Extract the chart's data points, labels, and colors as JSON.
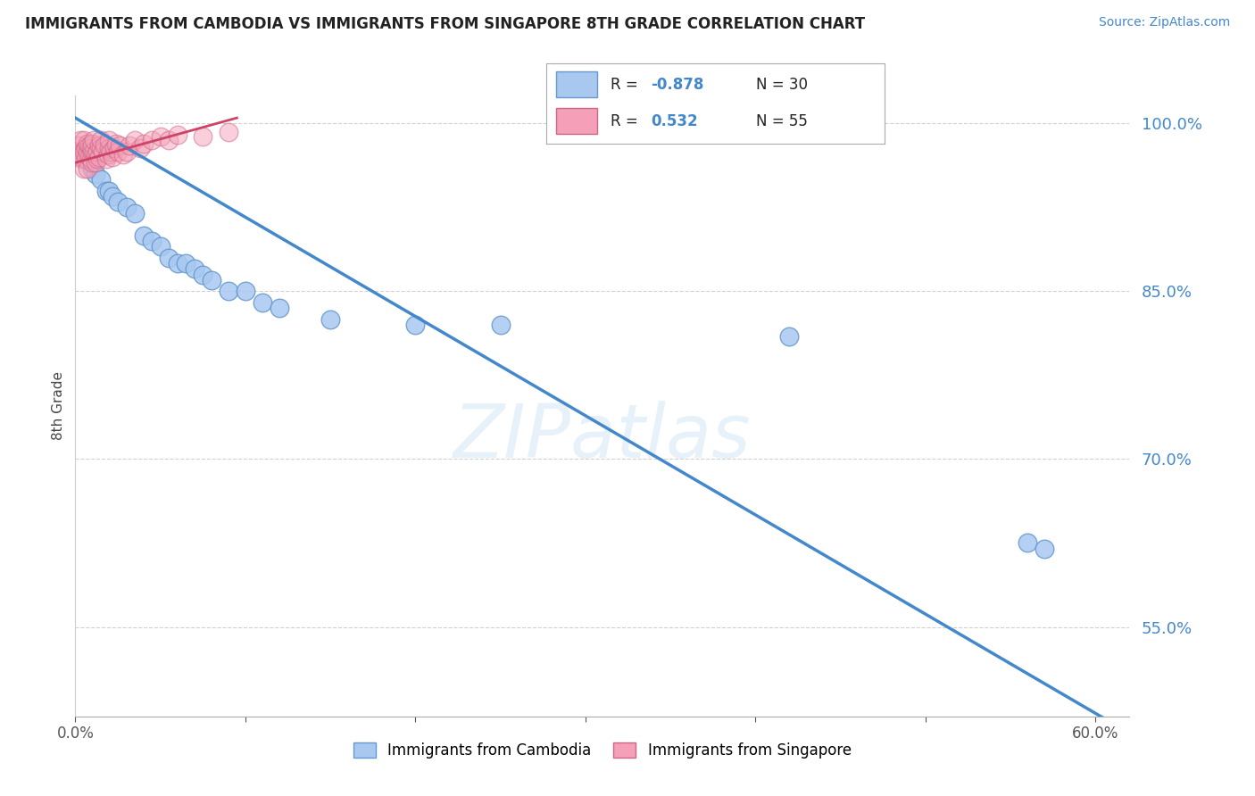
{
  "title": "IMMIGRANTS FROM CAMBODIA VS IMMIGRANTS FROM SINGAPORE 8TH GRADE CORRELATION CHART",
  "source": "Source: ZipAtlas.com",
  "ylabel": "8th Grade",
  "legend_label_blue": "Immigrants from Cambodia",
  "legend_label_pink": "Immigrants from Singapore",
  "watermark": "ZIPatlas",
  "xlim": [
    0.0,
    0.62
  ],
  "ylim": [
    0.47,
    1.025
  ],
  "ytick_positions": [
    0.55,
    0.7,
    0.85,
    1.0
  ],
  "ytick_labels": [
    "55.0%",
    "70.0%",
    "85.0%",
    "100.0%"
  ],
  "blue_scatter_x": [
    0.005,
    0.008,
    0.01,
    0.012,
    0.015,
    0.018,
    0.02,
    0.022,
    0.025,
    0.03,
    0.035,
    0.04,
    0.045,
    0.05,
    0.055,
    0.06,
    0.065,
    0.07,
    0.075,
    0.08,
    0.09,
    0.1,
    0.11,
    0.12,
    0.15,
    0.2,
    0.25,
    0.42,
    0.56,
    0.57
  ],
  "blue_scatter_y": [
    0.975,
    0.965,
    0.96,
    0.955,
    0.95,
    0.94,
    0.94,
    0.935,
    0.93,
    0.925,
    0.92,
    0.9,
    0.895,
    0.89,
    0.88,
    0.875,
    0.875,
    0.87,
    0.865,
    0.86,
    0.85,
    0.85,
    0.84,
    0.835,
    0.825,
    0.82,
    0.82,
    0.81,
    0.625,
    0.62
  ],
  "pink_scatter_x": [
    0.001,
    0.002,
    0.003,
    0.003,
    0.004,
    0.004,
    0.005,
    0.005,
    0.005,
    0.006,
    0.006,
    0.007,
    0.007,
    0.007,
    0.008,
    0.008,
    0.009,
    0.009,
    0.01,
    0.01,
    0.01,
    0.011,
    0.011,
    0.012,
    0.012,
    0.013,
    0.013,
    0.014,
    0.014,
    0.015,
    0.015,
    0.016,
    0.017,
    0.018,
    0.019,
    0.02,
    0.02,
    0.021,
    0.022,
    0.023,
    0.024,
    0.025,
    0.026,
    0.028,
    0.03,
    0.032,
    0.035,
    0.038,
    0.04,
    0.045,
    0.05,
    0.055,
    0.06,
    0.075,
    0.09
  ],
  "pink_scatter_y": [
    0.975,
    0.98,
    0.97,
    0.985,
    0.975,
    0.968,
    0.985,
    0.975,
    0.96,
    0.978,
    0.968,
    0.975,
    0.982,
    0.96,
    0.97,
    0.98,
    0.968,
    0.978,
    0.975,
    0.982,
    0.965,
    0.975,
    0.985,
    0.972,
    0.965,
    0.968,
    0.975,
    0.98,
    0.97,
    0.978,
    0.985,
    0.975,
    0.98,
    0.968,
    0.972,
    0.978,
    0.985,
    0.975,
    0.97,
    0.978,
    0.982,
    0.975,
    0.98,
    0.972,
    0.975,
    0.98,
    0.985,
    0.978,
    0.982,
    0.985,
    0.988,
    0.985,
    0.99,
    0.988,
    0.992
  ],
  "blue_line_x": [
    0.0,
    0.62
  ],
  "blue_line_y": [
    1.005,
    0.455
  ],
  "pink_line_x": [
    0.0,
    0.095
  ],
  "pink_line_y": [
    0.965,
    1.005
  ],
  "blue_dot_color": "#a8c8f0",
  "blue_dot_edge": "#6699cc",
  "pink_dot_color": "#f5a0b8",
  "pink_dot_edge": "#cc6688",
  "blue_line_color": "#4488cc",
  "pink_line_color": "#cc4466",
  "grid_color": "#cccccc",
  "background_color": "#ffffff",
  "title_color": "#222222",
  "source_color": "#4488cc",
  "legend_r_color": "#4488cc"
}
